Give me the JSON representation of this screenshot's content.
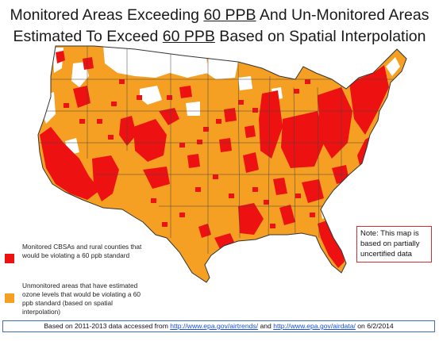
{
  "title": {
    "line1_a": "Monitored Areas Exceeding ",
    "line1_u": "60 PPB",
    "line1_b": " And Un-Monitored Areas",
    "line2_a": "Estimated To Exceed ",
    "line2_u": "60 PPB",
    "line2_b": " Based on Spatial Interpolation"
  },
  "colors": {
    "monitored": "#ee1111",
    "unmonitored": "#f5a023",
    "land": "#ffffff",
    "border": "#333333"
  },
  "note": {
    "text": "Note:  This map is based on partially uncertified data"
  },
  "legend": {
    "monitored_label": "Monitored CBSAs and rural counties that would be violating a 60 ppb standard",
    "unmonitored_label": "Unmonitored areas that have estimated ozone levels that would be violating a 60 ppb standard (based on spatial interpolation)"
  },
  "footer": {
    "text_a": "Based on 2011-2013  data accessed from ",
    "link1": "http://www.epa.gov/airtrends/",
    "text_b": " and  ",
    "link2": "http://www.epa.gov/airdata/",
    "text_c": " on 6/2/2014"
  }
}
